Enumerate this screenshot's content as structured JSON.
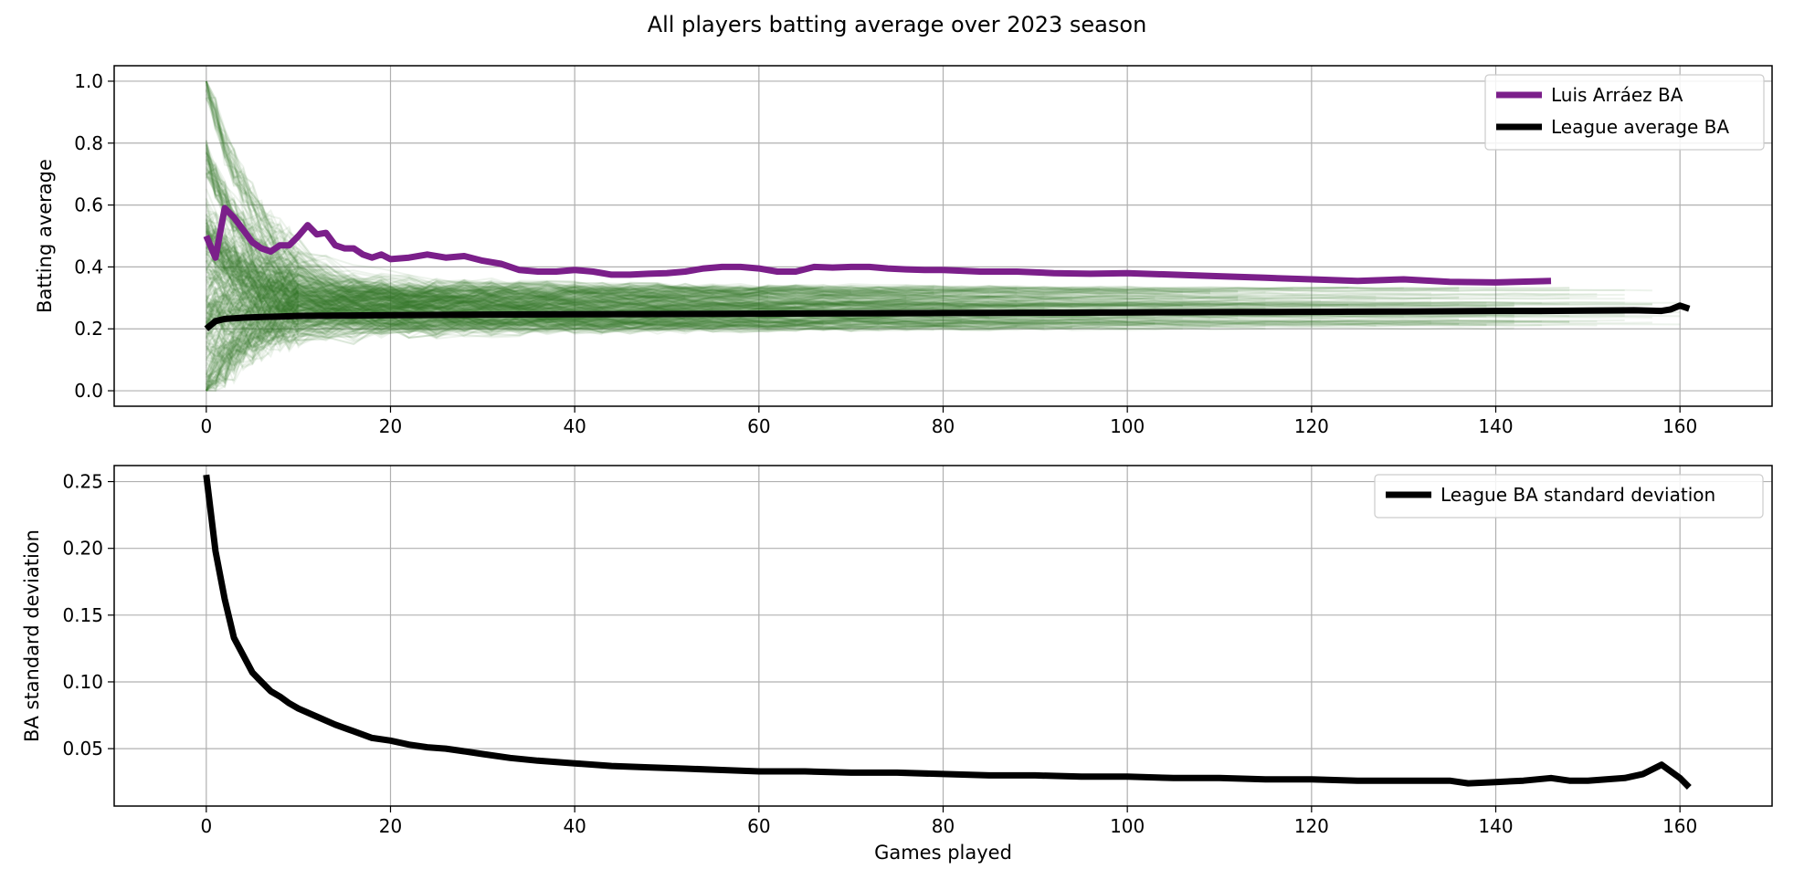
{
  "figure": {
    "title": "All players batting average over 2023 season"
  },
  "colors": {
    "player_lines": "#3a7a28",
    "highlight": "#7b1f8a",
    "league": "#000000",
    "grid": "#b0b0b0"
  },
  "chart_data": [
    {
      "type": "line",
      "title": "",
      "xlabel": "",
      "ylabel": "Batting average",
      "xlim": [
        -10,
        170
      ],
      "ylim": [
        -0.05,
        1.05
      ],
      "xticks": [
        0,
        20,
        40,
        60,
        80,
        100,
        120,
        140,
        160
      ],
      "yticks": [
        0.0,
        0.2,
        0.4,
        0.6,
        0.8,
        1.0
      ],
      "ytick_labels": [
        "0.0",
        "0.2",
        "0.4",
        "0.6",
        "0.8",
        "1.0"
      ],
      "grid": true,
      "legend_position": "top-right",
      "background_series": {
        "description_color": "green",
        "count": 450,
        "games_range": [
          0,
          161
        ],
        "converged_range": [
          0.18,
          0.33
        ]
      },
      "series": [
        {
          "name": "Luis Arráez BA",
          "color": "#7b1f8a",
          "x": [
            0,
            1,
            2,
            3,
            4,
            5,
            6,
            7,
            8,
            9,
            10,
            11,
            12,
            13,
            14,
            15,
            16,
            17,
            18,
            19,
            20,
            22,
            24,
            26,
            28,
            30,
            32,
            34,
            36,
            38,
            40,
            42,
            44,
            46,
            48,
            50,
            52,
            54,
            56,
            58,
            60,
            62,
            64,
            66,
            68,
            70,
            72,
            74,
            76,
            78,
            80,
            84,
            88,
            92,
            96,
            100,
            105,
            110,
            115,
            120,
            125,
            130,
            135,
            140,
            146
          ],
          "y": [
            0.5,
            0.43,
            0.59,
            0.56,
            0.52,
            0.48,
            0.46,
            0.45,
            0.47,
            0.47,
            0.5,
            0.535,
            0.505,
            0.51,
            0.47,
            0.46,
            0.46,
            0.44,
            0.43,
            0.44,
            0.425,
            0.43,
            0.44,
            0.43,
            0.435,
            0.42,
            0.41,
            0.39,
            0.385,
            0.385,
            0.39,
            0.385,
            0.375,
            0.375,
            0.378,
            0.38,
            0.385,
            0.395,
            0.4,
            0.4,
            0.395,
            0.385,
            0.385,
            0.4,
            0.398,
            0.4,
            0.4,
            0.395,
            0.392,
            0.39,
            0.39,
            0.385,
            0.385,
            0.38,
            0.378,
            0.38,
            0.375,
            0.37,
            0.365,
            0.36,
            0.355,
            0.36,
            0.352,
            0.35,
            0.355
          ]
        },
        {
          "name": "League average BA",
          "color": "#000000",
          "x": [
            0,
            1,
            2,
            4,
            6,
            8,
            10,
            15,
            20,
            30,
            40,
            50,
            60,
            70,
            80,
            90,
            100,
            110,
            120,
            130,
            140,
            145,
            150,
            155,
            158,
            159,
            160,
            161
          ],
          "y": [
            0.2,
            0.225,
            0.232,
            0.236,
            0.238,
            0.24,
            0.242,
            0.243,
            0.244,
            0.246,
            0.247,
            0.248,
            0.249,
            0.25,
            0.251,
            0.252,
            0.253,
            0.254,
            0.255,
            0.256,
            0.258,
            0.258,
            0.259,
            0.26,
            0.258,
            0.263,
            0.275,
            0.265
          ]
        }
      ]
    },
    {
      "type": "line",
      "title": "",
      "xlabel": "Games played",
      "ylabel": "BA standard deviation",
      "xlim": [
        -10,
        170
      ],
      "ylim": [
        0.007,
        0.262
      ],
      "xticks": [
        0,
        20,
        40,
        60,
        80,
        100,
        120,
        140,
        160
      ],
      "yticks": [
        0.05,
        0.1,
        0.15,
        0.2,
        0.25
      ],
      "ytick_labels": [
        "0.05",
        "0.10",
        "0.15",
        "0.20",
        "0.25"
      ],
      "grid": true,
      "legend_position": "top-right",
      "series": [
        {
          "name": "League BA standard deviation",
          "color": "#000000",
          "x": [
            0,
            1,
            2,
            3,
            4,
            5,
            6,
            7,
            8,
            9,
            10,
            12,
            14,
            16,
            18,
            20,
            22,
            24,
            26,
            28,
            30,
            33,
            36,
            40,
            44,
            48,
            52,
            56,
            60,
            65,
            70,
            75,
            80,
            85,
            90,
            95,
            100,
            105,
            110,
            115,
            120,
            125,
            130,
            135,
            137,
            140,
            143,
            146,
            148,
            150,
            152,
            154,
            156,
            158,
            160,
            161
          ],
          "y": [
            0.255,
            0.198,
            0.162,
            0.133,
            0.12,
            0.107,
            0.1,
            0.093,
            0.089,
            0.084,
            0.08,
            0.074,
            0.068,
            0.063,
            0.058,
            0.056,
            0.053,
            0.051,
            0.05,
            0.048,
            0.046,
            0.043,
            0.041,
            0.039,
            0.037,
            0.036,
            0.035,
            0.034,
            0.033,
            0.033,
            0.032,
            0.032,
            0.031,
            0.03,
            0.03,
            0.029,
            0.029,
            0.028,
            0.028,
            0.027,
            0.027,
            0.026,
            0.026,
            0.026,
            0.024,
            0.025,
            0.026,
            0.028,
            0.026,
            0.026,
            0.027,
            0.028,
            0.031,
            0.038,
            0.028,
            0.021
          ]
        }
      ]
    }
  ]
}
